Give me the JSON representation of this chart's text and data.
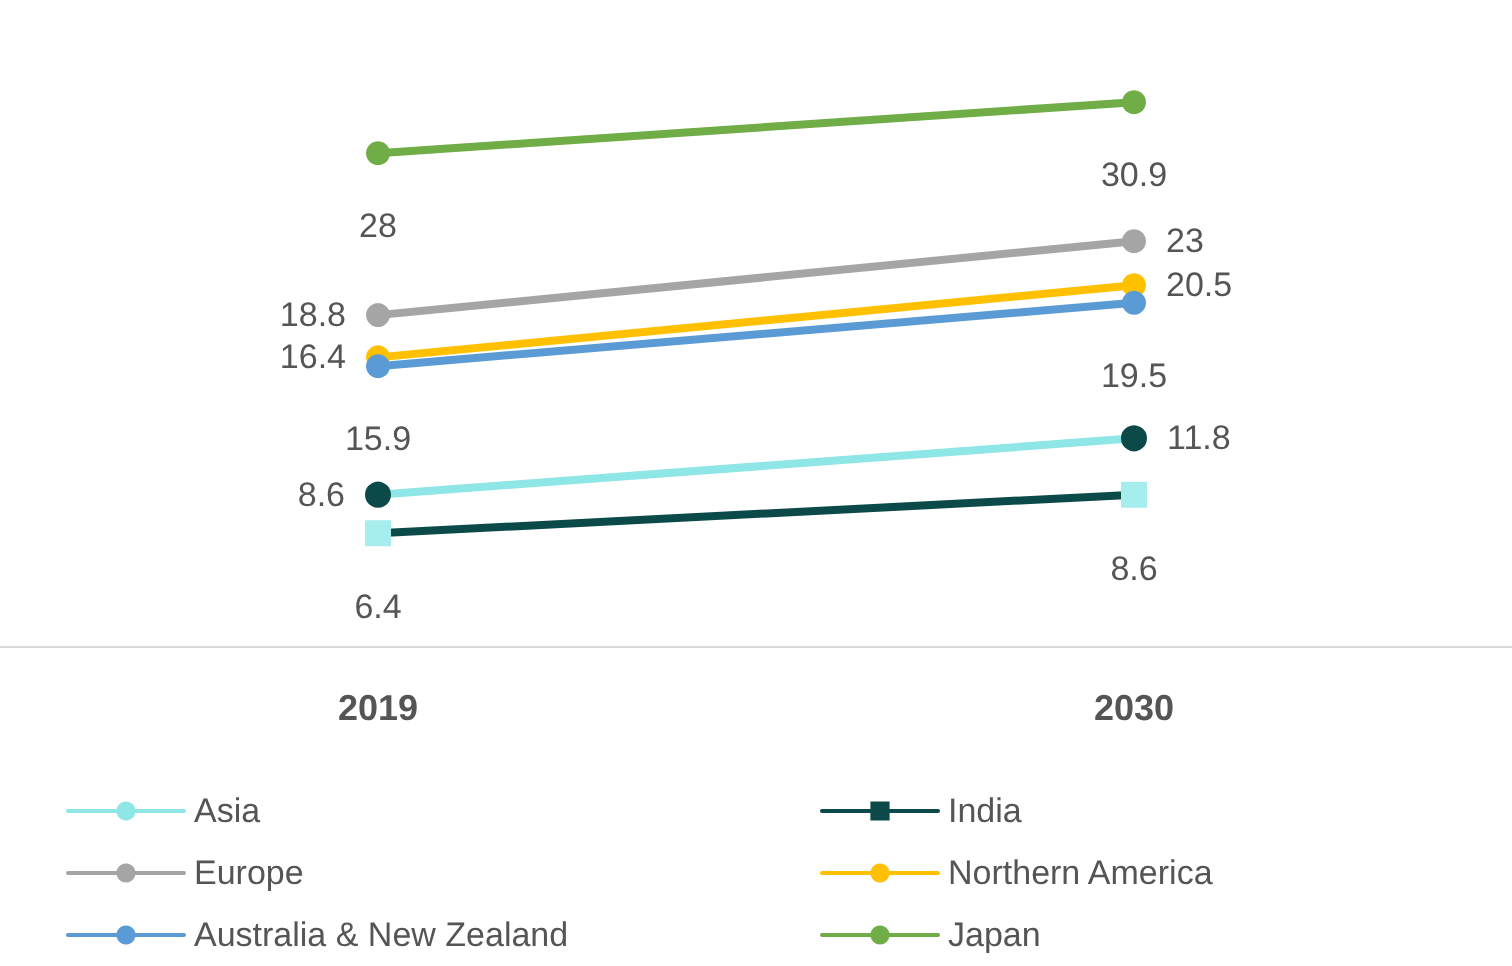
{
  "chart_data": {
    "type": "line",
    "categories": [
      "2019",
      "2030"
    ],
    "series": [
      {
        "name": "Asia",
        "color": "#8fe6e6",
        "colors": [
          "#0c4a4a",
          "#0c4a4a"
        ],
        "marker": "circle",
        "values": [
          8.6,
          11.8
        ]
      },
      {
        "name": "India",
        "color": "#0c4a4a",
        "colors": [
          "#a6eeee",
          "#a6eeee"
        ],
        "marker": "square",
        "values": [
          6.4,
          8.6
        ]
      },
      {
        "name": "Europe",
        "color": "#a5a5a5",
        "marker": "circle",
        "values": [
          18.8,
          23
        ]
      },
      {
        "name": "Northern America",
        "color": "#ffc000",
        "marker": "circle",
        "values": [
          16.4,
          20.5
        ]
      },
      {
        "name": "Australia & New Zealand",
        "color": "#5b9bd5",
        "marker": "circle",
        "values": [
          15.9,
          19.5
        ]
      },
      {
        "name": "Japan",
        "color": "#70ad47",
        "marker": "circle",
        "values": [
          28,
          30.9
        ]
      }
    ],
    "data_labels": true,
    "legend": "bottom",
    "tick_labels": "x",
    "grid": false,
    "line_style": "solid"
  }
}
